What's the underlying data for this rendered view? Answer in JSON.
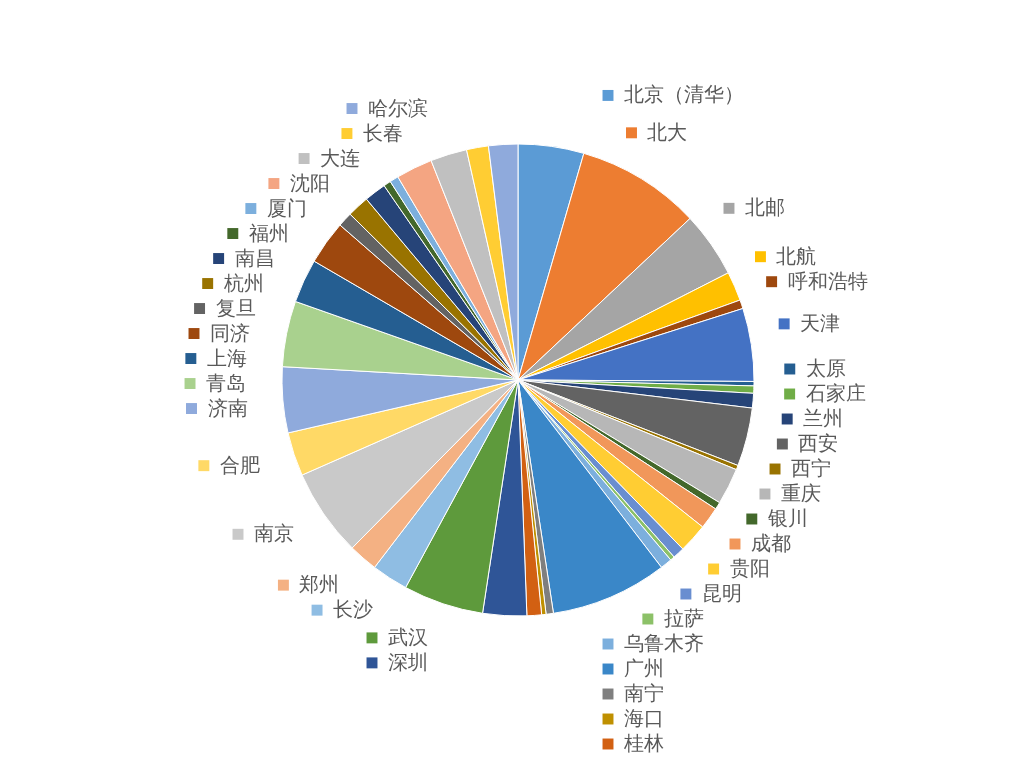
{
  "chart_data": {
    "type": "pie",
    "categories": [
      "北京（清华）",
      "北大",
      "北邮",
      "北航",
      "呼和浩特",
      "天津",
      "太原",
      "石家庄",
      "兰州",
      "西安",
      "西宁",
      "重庆",
      "银川",
      "成都",
      "贵阳",
      "昆明",
      "拉萨",
      "乌鲁木齐",
      "广州",
      "南宁",
      "海口",
      "桂林",
      "深圳",
      "武汉",
      "长沙",
      "郑州",
      "南京",
      "合肥",
      "济南",
      "青岛",
      "上海",
      "同济",
      "复旦",
      "杭州",
      "南昌",
      "福州",
      "厦门",
      "沈阳",
      "大连",
      "长春",
      "哈尔滨"
    ],
    "values": [
      4.5,
      8.5,
      4.5,
      2.0,
      0.6,
      5.0,
      0.3,
      0.5,
      1.0,
      4.0,
      0.3,
      2.5,
      0.5,
      1.5,
      2.0,
      0.8,
      0.3,
      0.8,
      8.0,
      0.5,
      0.3,
      1.0,
      3.0,
      5.5,
      2.5,
      2.0,
      6.0,
      3.0,
      4.5,
      4.5,
      3.0,
      3.0,
      1.0,
      1.5,
      1.5,
      0.5,
      0.6,
      2.5,
      2.5,
      1.5,
      2.0
    ],
    "colors": [
      "#5b9bd5",
      "#ed7d31",
      "#a5a5a5",
      "#ffc000",
      "#9e480e",
      "#4472c4",
      "#255e91",
      "#70ad47",
      "#264478",
      "#636363",
      "#997300",
      "#b7b7b7",
      "#43682b",
      "#f1975a",
      "#ffcd33",
      "#698ed0",
      "#8cc168",
      "#7cafdd",
      "#3a87c8",
      "#7f7f7f",
      "#bf9000",
      "#d26012",
      "#2f5597",
      "#5e9a3c",
      "#8fbde3",
      "#f4b183",
      "#c9c9c9",
      "#ffd966",
      "#8faadc",
      "#a9d18e",
      "#255e91",
      "#9e480e",
      "#636363",
      "#997300",
      "#264478",
      "#43682b",
      "#7cafdd",
      "#f4a582",
      "#c0c0c0",
      "#ffcd33",
      "#8faadc"
    ],
    "legend": "right"
  }
}
